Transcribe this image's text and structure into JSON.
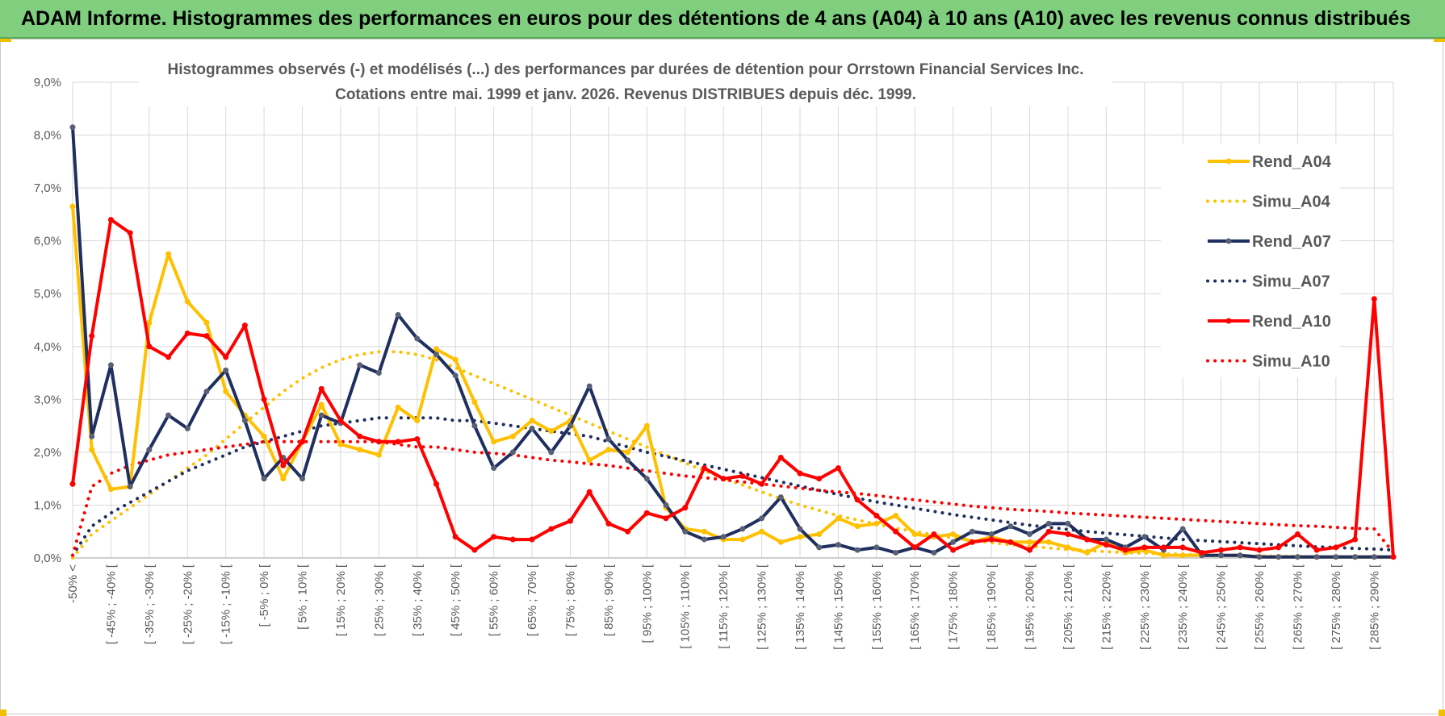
{
  "banner": {
    "title": "ADAM Informe. Histogrammes des performances en euros pour des détentions de 4 ans (A04) à 10 ans (A10) avec les revenus connus distribués",
    "color": "#7fcf7f"
  },
  "chart_data": {
    "type": "line",
    "title": "Histogrammes observés (-) et modélisés (...) des performances par durées de détention pour Orrstown Financial Services Inc.",
    "subtitle": "Cotations entre mai. 1999 et janv. 2026.  Revenus DISTRIBUES depuis déc. 1999.",
    "xlabel": "",
    "ylabel": "",
    "ylim": [
      0,
      9
    ],
    "yticks": [
      "0,0%",
      "1,0%",
      "2,0%",
      "3,0%",
      "4,0%",
      "5,0%",
      "6,0%",
      "7,0%",
      "8,0%",
      "9,0%"
    ],
    "grid": true,
    "legend_position": "right",
    "x_labels": [
      "-50% <",
      "[ -45% ; -40% [",
      "[ -35% ; -30% [",
      "[ -25% ; -20% [",
      "[ -15% ; -10% [",
      "[ -5% ; 0% [",
      "[ 5% ; 10% [",
      "[ 15% ; 20% [",
      "[ 25% ; 30% [",
      "[ 35% ; 40% [",
      "[ 45% ; 50% [",
      "[ 55% ; 60% [",
      "[ 65% ; 70% [",
      "[ 75% ; 80% [",
      "[ 85% ; 90% [",
      "[ 95% ; 100% [",
      "[ 105% ; 110% [",
      "[ 115% ; 120% [",
      "[ 125% ; 130% [",
      "[ 135% ; 140% [",
      "[ 145% ; 150% [",
      "[ 155% ; 160% [",
      "[ 165% ; 170% [",
      "[ 175% ; 180% [",
      "[ 185% ; 190% [",
      "[ 195% ; 200% [",
      "[ 205% ; 210% [",
      "[ 215% ; 220% [",
      "[ 225% ; 230% [",
      "[ 235% ; 240% [",
      "[ 245% ; 250% [",
      "[ 255% ; 260% [",
      "[ 265% ; 270% [",
      "[ 275% ; 280% [",
      "[ 285% ; 290% ["
    ],
    "series": [
      {
        "name": "Rend_A04",
        "style": "solid",
        "color": "#ffc000",
        "values": [
          6.65,
          2.05,
          1.3,
          1.35,
          4.45,
          5.75,
          4.85,
          4.45,
          3.15,
          2.7,
          2.3,
          1.5,
          2.2,
          2.9,
          2.15,
          2.05,
          1.95,
          2.85,
          2.6,
          3.95,
          3.75,
          2.95,
          2.2,
          2.3,
          2.6,
          2.4,
          2.6,
          1.85,
          2.05,
          2.0,
          2.5,
          0.95,
          0.55,
          0.5,
          0.35,
          0.35,
          0.5,
          0.3,
          0.4,
          0.45,
          0.75,
          0.6,
          0.65,
          0.8,
          0.45,
          0.4,
          0.45,
          0.3,
          0.4,
          0.3,
          0.3,
          0.3,
          0.2,
          0.1,
          0.3,
          0.1,
          0.15,
          0.05,
          0.05,
          0.05,
          0.05,
          0.05,
          0.02,
          0.02,
          0.02,
          0.02,
          0.02,
          0.02,
          0.02,
          0.02
        ]
      },
      {
        "name": "Simu_A04",
        "style": "dotted",
        "color": "#ffc000",
        "values": [
          0.0,
          0.45,
          0.7,
          0.95,
          1.2,
          1.45,
          1.7,
          1.95,
          2.25,
          2.55,
          2.85,
          3.15,
          3.4,
          3.6,
          3.75,
          3.85,
          3.9,
          3.9,
          3.85,
          3.75,
          3.6,
          3.45,
          3.3,
          3.15,
          3.0,
          2.85,
          2.7,
          2.55,
          2.4,
          2.25,
          2.1,
          1.95,
          1.8,
          1.65,
          1.5,
          1.38,
          1.25,
          1.12,
          1.0,
          0.9,
          0.8,
          0.72,
          0.64,
          0.56,
          0.5,
          0.44,
          0.38,
          0.33,
          0.29,
          0.25,
          0.22,
          0.19,
          0.16,
          0.14,
          0.12,
          0.1,
          0.09,
          0.08,
          0.07,
          0.06,
          0.05,
          0.04,
          0.04,
          0.03,
          0.03,
          0.02,
          0.02,
          0.02,
          0.01,
          0.01
        ]
      },
      {
        "name": "Rend_A07",
        "style": "solid",
        "color": "#1f2f5f",
        "values": [
          8.15,
          2.3,
          3.65,
          1.35,
          2.05,
          2.7,
          2.45,
          3.15,
          3.55,
          2.6,
          1.5,
          1.9,
          1.5,
          2.7,
          2.55,
          3.65,
          3.5,
          4.6,
          4.15,
          3.85,
          3.45,
          2.5,
          1.7,
          2.0,
          2.45,
          2.0,
          2.5,
          3.25,
          2.25,
          1.85,
          1.5,
          1.0,
          0.5,
          0.35,
          0.4,
          0.55,
          0.75,
          1.15,
          0.55,
          0.2,
          0.25,
          0.15,
          0.2,
          0.1,
          0.2,
          0.1,
          0.3,
          0.5,
          0.45,
          0.6,
          0.45,
          0.65,
          0.65,
          0.35,
          0.35,
          0.2,
          0.4,
          0.15,
          0.55,
          0.05,
          0.05,
          0.05,
          0.02,
          0.02,
          0.02,
          0.02,
          0.02,
          0.02,
          0.02,
          0.02
        ]
      },
      {
        "name": "Simu_A07",
        "style": "dotted",
        "color": "#1f2f5f",
        "values": [
          0.05,
          0.6,
          0.85,
          1.05,
          1.25,
          1.45,
          1.65,
          1.8,
          1.95,
          2.1,
          2.2,
          2.3,
          2.4,
          2.5,
          2.55,
          2.6,
          2.65,
          2.65,
          2.65,
          2.65,
          2.6,
          2.6,
          2.55,
          2.5,
          2.45,
          2.4,
          2.35,
          2.3,
          2.2,
          2.1,
          2.0,
          1.92,
          1.84,
          1.76,
          1.68,
          1.6,
          1.52,
          1.44,
          1.36,
          1.28,
          1.2,
          1.13,
          1.06,
          1.0,
          0.94,
          0.88,
          0.82,
          0.77,
          0.72,
          0.67,
          0.62,
          0.58,
          0.54,
          0.5,
          0.47,
          0.44,
          0.41,
          0.38,
          0.35,
          0.33,
          0.31,
          0.29,
          0.27,
          0.25,
          0.23,
          0.21,
          0.2,
          0.18,
          0.17,
          0.15
        ]
      },
      {
        "name": "Rend_A10",
        "style": "solid",
        "color": "#ff0000",
        "values": [
          1.4,
          4.2,
          6.4,
          6.15,
          4.0,
          3.8,
          4.25,
          4.2,
          3.8,
          4.4,
          3.0,
          1.75,
          2.2,
          3.2,
          2.6,
          2.3,
          2.2,
          2.2,
          2.25,
          1.4,
          0.4,
          0.15,
          0.4,
          0.35,
          0.35,
          0.55,
          0.7,
          1.25,
          0.65,
          0.5,
          0.85,
          0.75,
          0.95,
          1.7,
          1.5,
          1.55,
          1.4,
          1.9,
          1.6,
          1.5,
          1.7,
          1.1,
          0.8,
          0.5,
          0.2,
          0.45,
          0.15,
          0.3,
          0.35,
          0.3,
          0.15,
          0.5,
          0.45,
          0.35,
          0.25,
          0.15,
          0.2,
          0.2,
          0.2,
          0.1,
          0.15,
          0.2,
          0.15,
          0.2,
          0.45,
          0.15,
          0.2,
          0.35,
          4.9,
          0.02
        ]
      },
      {
        "name": "Simu_A10",
        "style": "dotted",
        "color": "#ff0000",
        "values": [
          0.05,
          1.35,
          1.6,
          1.75,
          1.85,
          1.95,
          2.0,
          2.05,
          2.1,
          2.15,
          2.2,
          2.2,
          2.2,
          2.2,
          2.2,
          2.2,
          2.2,
          2.15,
          2.1,
          2.1,
          2.05,
          2.0,
          1.98,
          1.95,
          1.9,
          1.85,
          1.82,
          1.78,
          1.75,
          1.7,
          1.65,
          1.6,
          1.55,
          1.52,
          1.48,
          1.44,
          1.4,
          1.36,
          1.32,
          1.28,
          1.25,
          1.22,
          1.18,
          1.14,
          1.1,
          1.06,
          1.02,
          0.98,
          0.95,
          0.92,
          0.9,
          0.88,
          0.85,
          0.83,
          0.81,
          0.79,
          0.77,
          0.75,
          0.73,
          0.71,
          0.69,
          0.67,
          0.65,
          0.63,
          0.61,
          0.6,
          0.58,
          0.56,
          0.55,
          0.1
        ]
      }
    ]
  }
}
